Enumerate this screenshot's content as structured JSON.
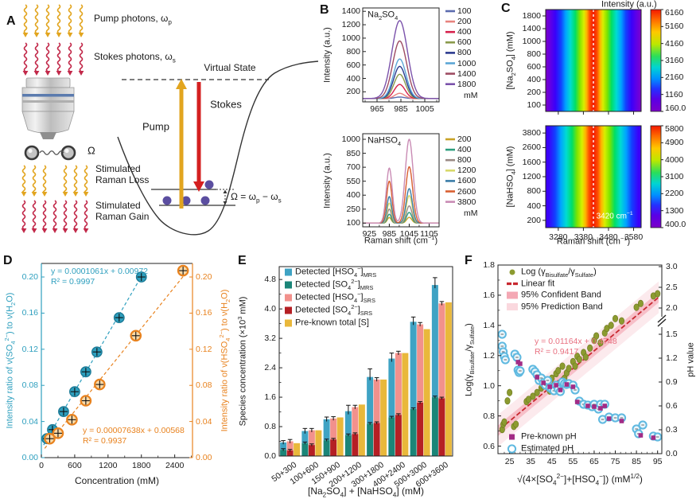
{
  "panel_labels": {
    "A": "A",
    "B": "B",
    "C": "C",
    "D": "D",
    "E": "E",
    "F": "F"
  },
  "panelA": {
    "pump_photons": "Pump photons, ω_{p}",
    "stokes_photons": "Stokes photons, ω_{s}",
    "omega": "Ω",
    "srl": "Stimulated Raman Loss",
    "srg": "Stimulated Raman Gain",
    "virtual_state": "Virtual State",
    "pump": "Pump",
    "stokes": "Stokes",
    "omega_eq": "Ω = ω_{p} − ω_{s}",
    "colors": {
      "pump_arrow": "#E2A51F",
      "stokes_arrow": "#C2294A",
      "molecule_dot": "#5B4EA0"
    }
  },
  "chart_data": [
    {
      "id": "b-top",
      "type": "line",
      "title": "Na_{2}SO_{4}",
      "ylabel": "Intensity (a.u.)",
      "xlim": [
        953,
        1017
      ],
      "x_ticks": [
        965,
        985,
        1005
      ],
      "ylim": [
        50,
        1450
      ],
      "y_ticks": [
        200,
        400,
        600,
        800,
        1000,
        1200,
        1400
      ],
      "baseline": 100,
      "peaks": [
        {
          "center": 984,
          "sigma": 6.5
        }
      ],
      "legend_unit": "mM",
      "series": [
        {
          "label": "100",
          "color": "#5B6BAE",
          "heights": [
            22
          ]
        },
        {
          "label": "200",
          "color": "#E8837E",
          "heights": [
            78
          ]
        },
        {
          "label": "400",
          "color": "#D6224C",
          "heights": [
            210
          ]
        },
        {
          "label": "600",
          "color": "#8A9A4B",
          "heights": [
            362
          ]
        },
        {
          "label": "800",
          "color": "#2B3A8F",
          "heights": [
            480
          ]
        },
        {
          "label": "1000",
          "color": "#5BA6D6",
          "heights": [
            590
          ]
        },
        {
          "label": "1400",
          "color": "#9E4C63",
          "heights": [
            858
          ]
        },
        {
          "label": "1800",
          "color": "#7B52AB",
          "heights": [
            1162
          ]
        }
      ]
    },
    {
      "id": "b-bottom",
      "type": "line",
      "title": "NaHSO_{4}",
      "ylabel": "Intensity (a.u.)",
      "xlabel": "Raman shift (cm^{−1})",
      "xlim": [
        905,
        1135
      ],
      "x_ticks": [
        925,
        985,
        1045,
        1105
      ],
      "ylim": [
        60,
        1060
      ],
      "y_ticks": [
        100,
        250,
        400,
        550,
        700,
        850,
        1000
      ],
      "baseline": 100,
      "peaks": [
        {
          "center": 985,
          "sigma": 9
        },
        {
          "center": 1045,
          "sigma": 12
        }
      ],
      "legend_unit": "mM",
      "series": [
        {
          "label": "200",
          "color": "#C9A227",
          "heights": [
            60,
            62
          ]
        },
        {
          "label": "400",
          "color": "#2E9E7E",
          "heights": [
            95,
            115
          ]
        },
        {
          "label": "800",
          "color": "#9A8A85",
          "heights": [
            150,
            185
          ]
        },
        {
          "label": "1200",
          "color": "#D8D96A",
          "heights": [
            215,
            295
          ]
        },
        {
          "label": "1600",
          "color": "#3A7CA8",
          "heights": [
            285,
            370
          ]
        },
        {
          "label": "2600",
          "color": "#D95F30",
          "heights": [
            450,
            605
          ]
        },
        {
          "label": "3800",
          "color": "#C98BB4",
          "heights": [
            590,
            900
          ]
        }
      ]
    },
    {
      "id": "c-top",
      "type": "heatmap",
      "ylabel": "[Na_{2}SO_{4}] (mM)",
      "y_ticks": [
        "1800",
        "1400",
        "1000",
        "800",
        "600",
        "400",
        "200",
        "100"
      ],
      "x_ticks": [
        "3280",
        "3380",
        "3480",
        "3580"
      ],
      "show_x_labels": false,
      "line_x_label": "3420",
      "colorbar": {
        "title": "Intensity (a.u.)",
        "ticks": [
          "6160",
          "5160",
          "4160",
          "3160",
          "2160",
          "1160",
          "160.0"
        ]
      }
    },
    {
      "id": "c-bottom",
      "type": "heatmap",
      "ylabel": "[NaHSO_{4}] (mM)",
      "y_ticks": [
        "3800",
        "2600",
        "1600",
        "1200",
        "800",
        "400",
        "200"
      ],
      "x_ticks": [
        "3280",
        "3380",
        "3480",
        "3580"
      ],
      "show_x_labels": true,
      "xlabel": "Raman shift (cm^{−1})",
      "annotation": "3420 cm^{−1}",
      "colorbar": {
        "ticks": [
          "5800",
          "4900",
          "4000",
          "3100",
          "2200",
          "1300",
          "400.0"
        ]
      }
    },
    {
      "id": "d",
      "type": "scatter-dual",
      "xlabel": "Concentration (mM)",
      "xlim": [
        0,
        2720
      ],
      "x_ticks": [
        0,
        600,
        1200,
        1800,
        2400
      ],
      "ylim": [
        0,
        0.215
      ],
      "y_ticks": [
        "0.00",
        "0.04",
        "0.08",
        "0.12",
        "0.16",
        "0.20"
      ],
      "left": {
        "label": "Intensity ratio of ν(SO_{4}^{2−}) to ν(H_{2}O)",
        "color": "#2E9FBE",
        "fit_text1": "y = 0.0001061x + 0.00972",
        "fit_text2": "R² = 0.9997",
        "slope": 0.0001061,
        "intercept": 0.00972,
        "points": [
          [
            100,
            0.021
          ],
          [
            200,
            0.031
          ],
          [
            400,
            0.051
          ],
          [
            600,
            0.073
          ],
          [
            800,
            0.095
          ],
          [
            1000,
            0.117
          ],
          [
            1400,
            0.155
          ],
          [
            1800,
            0.2
          ]
        ]
      },
      "right": {
        "label": "Intensity ratio of ν(HSO_{4}^{2−}) to ν(H_{2}O)",
        "color": "#E8821E",
        "fit_text1": "y = 0.00007638x + 0.00568",
        "fit_text2": "R² = 0.9937",
        "slope": 7.638e-05,
        "intercept": 0.00568,
        "points": [
          [
            150,
            0.021
          ],
          [
            300,
            0.027
          ],
          [
            550,
            0.042
          ],
          [
            800,
            0.063
          ],
          [
            1050,
            0.081
          ],
          [
            1700,
            0.135
          ],
          [
            2550,
            0.207
          ]
        ]
      }
    },
    {
      "id": "e",
      "type": "bar",
      "ylabel": "Species concentration (×10^{3} mM)",
      "xlabel": "[Na_{2}SO_{4}] + [NaHSO_{4}] (mM)",
      "ylim": [
        0,
        5.15
      ],
      "y_ticks": [
        "0.0",
        "0.8",
        "1.6",
        "2.4",
        "3.2",
        "4.0",
        "4.8"
      ],
      "legend": [
        {
          "label": "Detected [HSO_{4}^{−}]_{MRS}",
          "color": "#3FA3C4"
        },
        {
          "label": "Detected  [SO_{4}^{2−}]_{MRS}",
          "color": "#1B8578"
        },
        {
          "label": "Detected [HSO_{4}^{−}]_{SRS}",
          "color": "#F2918C"
        },
        {
          "label": "Detected  [SO_{4}^{2−}]_{SRS}",
          "color": "#B51F24"
        },
        {
          "label": "Pre-known total [S]",
          "color": "#E9B83B"
        }
      ],
      "categories": [
        "50+300",
        "100+600",
        "150+900",
        "200+1200",
        "300+1800",
        "400+2400",
        "500+3000",
        "600+3600"
      ],
      "groups": [
        {
          "mrs_so4": 0.17,
          "mrs_total": 0.37,
          "mrs_err": 0.05,
          "srs_so4": 0.15,
          "srs_total": 0.4,
          "preknown": 0.35
        },
        {
          "mrs_so4": 0.35,
          "mrs_total": 0.68,
          "mrs_err": 0.07,
          "srs_so4": 0.3,
          "srs_total": 0.7,
          "preknown": 0.7
        },
        {
          "mrs_so4": 0.43,
          "mrs_total": 1.0,
          "mrs_err": 0.06,
          "srs_so4": 0.45,
          "srs_total": 1.02,
          "preknown": 1.05
        },
        {
          "mrs_so4": 0.57,
          "mrs_total": 1.22,
          "mrs_err": 0.16,
          "srs_so4": 0.6,
          "srs_total": 1.33,
          "preknown": 1.4
        },
        {
          "mrs_so4": 0.88,
          "mrs_total": 2.15,
          "mrs_err": 0.22,
          "srs_so4": 0.9,
          "srs_total": 2.08,
          "preknown": 2.08
        },
        {
          "mrs_so4": 1.05,
          "mrs_total": 2.65,
          "mrs_err": 0.15,
          "srs_so4": 1.12,
          "srs_total": 2.8,
          "preknown": 2.8
        },
        {
          "mrs_so4": 1.28,
          "mrs_total": 3.65,
          "mrs_err": 0.13,
          "srs_so4": 1.45,
          "srs_total": 3.58,
          "preknown": 3.45
        },
        {
          "mrs_so4": 1.6,
          "mrs_total": 4.65,
          "mrs_err": 0.2,
          "srs_so4": 1.57,
          "srs_total": 4.15,
          "preknown": 4.18
        }
      ]
    },
    {
      "id": "f",
      "type": "scatter-bands",
      "xlabel": "√(4×[SO_{4}^{2−}]+[HSO_{4}^{−}]) (mM^{1/2})",
      "xlim": [
        19.5,
        97
      ],
      "x_ticks": [
        25,
        35,
        45,
        55,
        65,
        75,
        85,
        95
      ],
      "left": {
        "label": "Log(γ_{Bisulfate}/γ_{Sulfate})",
        "lim": [
          0.55,
          1.8
        ],
        "ticks": [
          "0.6",
          "0.8",
          "1.0",
          "1.2",
          "1.4",
          "1.6",
          "1.8"
        ]
      },
      "right": {
        "label": "pH value",
        "lower_ticks": [
          "0.0",
          "0.3",
          "0.6",
          "0.9",
          "1.2",
          "1.5"
        ],
        "upper_ticks": [
          "2.0",
          "2.5",
          "3.0"
        ]
      },
      "fit": {
        "slope": 0.01164,
        "intercept": 0.4748,
        "text1": "y = 0.01164x + 0.4748",
        "text2": "R² = 0.9417",
        "color": "#C82830",
        "conf_color": "#F4A8B4",
        "pred_color": "#FAD8DE",
        "conf_halfwidth": 0.035,
        "pred_halfwidth": 0.105
      },
      "legend_top": [
        {
          "label": "Log (γ_{Bisulfate}/γ_{Sulfate})",
          "marker": "dot",
          "color": "#8C9B30"
        },
        {
          "label": "Linear fit",
          "marker": "line",
          "color": "#C82830"
        },
        {
          "label": "95% Confident Band",
          "marker": "band",
          "color": "#F4A8B4"
        },
        {
          "label": "95% Prediction Band",
          "marker": "band",
          "color": "#FAD8DE"
        }
      ],
      "legend_bottom": [
        {
          "label": "Pre-known pH",
          "marker": "square",
          "color": "#A22C86"
        },
        {
          "label": "Estimated pH",
          "marker": "circle",
          "color": "#5FB9E0"
        }
      ],
      "log_points": [
        [
          21.5,
          0.71
        ],
        [
          22,
          0.745
        ],
        [
          22.5,
          0.76
        ],
        [
          24,
          0.9
        ],
        [
          25,
          0.955
        ],
        [
          27,
          0.73
        ],
        [
          28,
          0.745
        ],
        [
          33,
          0.895
        ],
        [
          34,
          0.91
        ],
        [
          36,
          0.93
        ],
        [
          38,
          0.955
        ],
        [
          40,
          0.985
        ],
        [
          41,
          1.0
        ],
        [
          42,
          1.02
        ],
        [
          44,
          0.965
        ],
        [
          45,
          1.05
        ],
        [
          46,
          1.005
        ],
        [
          47,
          1.08
        ],
        [
          48,
          1.1
        ],
        [
          50,
          1.13
        ],
        [
          51,
          1.05
        ],
        [
          52,
          1.085
        ],
        [
          53,
          1.115
        ],
        [
          55,
          1.16
        ],
        [
          56,
          1.13
        ],
        [
          57,
          1.195
        ],
        [
          58,
          1.175
        ],
        [
          60,
          1.22
        ],
        [
          61,
          1.19
        ],
        [
          63,
          1.25
        ],
        [
          65,
          1.3
        ],
        [
          66,
          1.33
        ],
        [
          68,
          1.285
        ],
        [
          70,
          1.35
        ],
        [
          71,
          1.38
        ],
        [
          73,
          1.4
        ],
        [
          75,
          1.445
        ],
        [
          78,
          1.43
        ],
        [
          85,
          1.52
        ],
        [
          87,
          1.545
        ],
        [
          93,
          1.595
        ],
        [
          95,
          1.61
        ]
      ],
      "preknown_ph": [
        [
          29,
          1.15
        ],
        [
          30,
          1.13
        ],
        [
          38,
          0.96
        ],
        [
          41,
          0.89
        ],
        [
          44,
          0.84
        ],
        [
          47,
          0.86
        ],
        [
          49,
          0.8
        ],
        [
          52,
          0.87
        ],
        [
          55,
          0.84
        ],
        [
          57,
          0.65
        ],
        [
          62,
          0.6
        ],
        [
          65,
          0.59
        ],
        [
          68,
          0.57
        ],
        [
          70,
          0.6
        ],
        [
          72,
          0.44
        ],
        [
          78,
          0.41
        ],
        [
          87,
          0.23
        ],
        [
          93,
          0.2
        ]
      ],
      "estimated_ph": [
        [
          21.5,
          1.5
        ],
        [
          21.5,
          1.35
        ],
        [
          22,
          1.28
        ],
        [
          22.5,
          1.22
        ],
        [
          23,
          1.18
        ],
        [
          27.5,
          1.25
        ],
        [
          28.5,
          1.21
        ],
        [
          29,
          1.05
        ],
        [
          29.5,
          1.02
        ],
        [
          30,
          1.04
        ],
        [
          36,
          1.06
        ],
        [
          37,
          1.03
        ],
        [
          38,
          0.99
        ],
        [
          39,
          0.92
        ],
        [
          40,
          0.95
        ],
        [
          41,
          0.89
        ],
        [
          42,
          0.86
        ],
        [
          43,
          0.92
        ],
        [
          44,
          0.83
        ],
        [
          45,
          0.81
        ],
        [
          46,
          0.79
        ],
        [
          47,
          0.86
        ],
        [
          48,
          0.81
        ],
        [
          49,
          0.78
        ],
        [
          50,
          0.9
        ],
        [
          51,
          0.88
        ],
        [
          52,
          0.87
        ],
        [
          53,
          0.88
        ],
        [
          55,
          0.86
        ],
        [
          56,
          0.8
        ],
        [
          58,
          0.66
        ],
        [
          60,
          0.62
        ],
        [
          62,
          0.61
        ],
        [
          64,
          0.59
        ],
        [
          65,
          0.62
        ],
        [
          67,
          0.56
        ],
        [
          68,
          0.62
        ],
        [
          69,
          0.43
        ],
        [
          70,
          0.62
        ],
        [
          72,
          0.46
        ],
        [
          75,
          0.45
        ],
        [
          78,
          0.45
        ],
        [
          85,
          0.31
        ],
        [
          86,
          0.25
        ],
        [
          88,
          0.36
        ],
        [
          93,
          0.22
        ],
        [
          95,
          0.21
        ]
      ]
    }
  ]
}
